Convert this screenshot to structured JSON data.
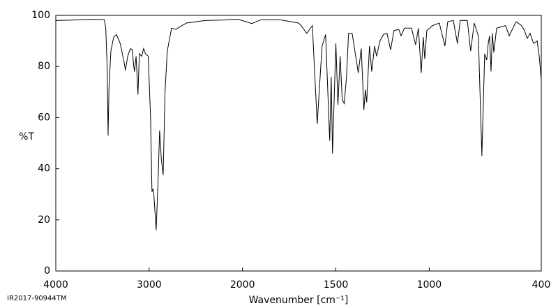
{
  "chart_data": {
    "type": "line",
    "ylabel": "%T",
    "xlabel": "Wavenumber [cm⁻¹]",
    "footnote": "IR2017-90944TM",
    "xlim": [
      4000,
      400
    ],
    "xticks": [
      4000,
      3000,
      2000,
      1500,
      1000,
      400
    ],
    "x_scale_break": 2000,
    "ylim": [
      0,
      100
    ],
    "yticks": [
      0,
      20,
      40,
      60,
      80,
      100
    ],
    "x": [
      4000,
      3800,
      3600,
      3480,
      3465,
      3450,
      3440,
      3430,
      3410,
      3380,
      3350,
      3310,
      3270,
      3254,
      3230,
      3200,
      3180,
      3165,
      3157,
      3140,
      3120,
      3105,
      3080,
      3060,
      3040,
      3010,
      2985,
      2970,
      2960,
      2950,
      2925,
      2905,
      2888,
      2870,
      2850,
      2830,
      2806,
      2760,
      2716,
      2672,
      2600,
      2400,
      2200,
      2050,
      1950,
      1900,
      1800,
      1700,
      1686,
      1656,
      1626,
      1600,
      1574,
      1555,
      1533,
      1525,
      1518,
      1500,
      1489,
      1477,
      1466,
      1455,
      1443,
      1432,
      1413,
      1380,
      1364,
      1350,
      1342,
      1335,
      1320,
      1308,
      1293,
      1282,
      1264,
      1245,
      1226,
      1207,
      1189,
      1163,
      1151,
      1133,
      1095,
      1073,
      1058,
      1043,
      1032,
      1024,
      1013,
      983,
      946,
      916,
      901,
      871,
      849,
      834,
      796,
      778,
      759,
      737,
      718,
      703,
      692,
      684,
      677,
      669,
      662,
      654,
      639,
      591,
      572,
      535,
      505,
      490,
      475,
      460,
      441,
      422,
      411,
      400
    ],
    "series": [
      {
        "name": "%T",
        "color": "#000000",
        "values": [
          98,
          98.2,
          98.5,
          98.3,
          95,
          80,
          53,
          72,
          86,
          91.5,
          92.5,
          89,
          82,
          78.5,
          84,
          87,
          86.5,
          80,
          78,
          84,
          69,
          85,
          84,
          87,
          85,
          84,
          60,
          31,
          32,
          30,
          16,
          35,
          55,
          44,
          37.5,
          70,
          86,
          95,
          94.5,
          95.5,
          97,
          98,
          98.2,
          98.5,
          96.8,
          98.3,
          98.3,
          97,
          96,
          93,
          96,
          57.5,
          88,
          92.5,
          51,
          76,
          46,
          89,
          65,
          84,
          67,
          65.5,
          76,
          93,
          93,
          77.5,
          87,
          63,
          71,
          66,
          88,
          78,
          88,
          84,
          90,
          92.5,
          93,
          86.5,
          94,
          94.5,
          92,
          95,
          95,
          88.5,
          95,
          77.5,
          91.5,
          83,
          94,
          96,
          97,
          88,
          97.5,
          98,
          89,
          98,
          98,
          86,
          97,
          92,
          45,
          85,
          82.5,
          89,
          92,
          78,
          93,
          85.5,
          95,
          96,
          92,
          97.5,
          96,
          94,
          91,
          93,
          89,
          90,
          84,
          75
        ]
      }
    ]
  }
}
